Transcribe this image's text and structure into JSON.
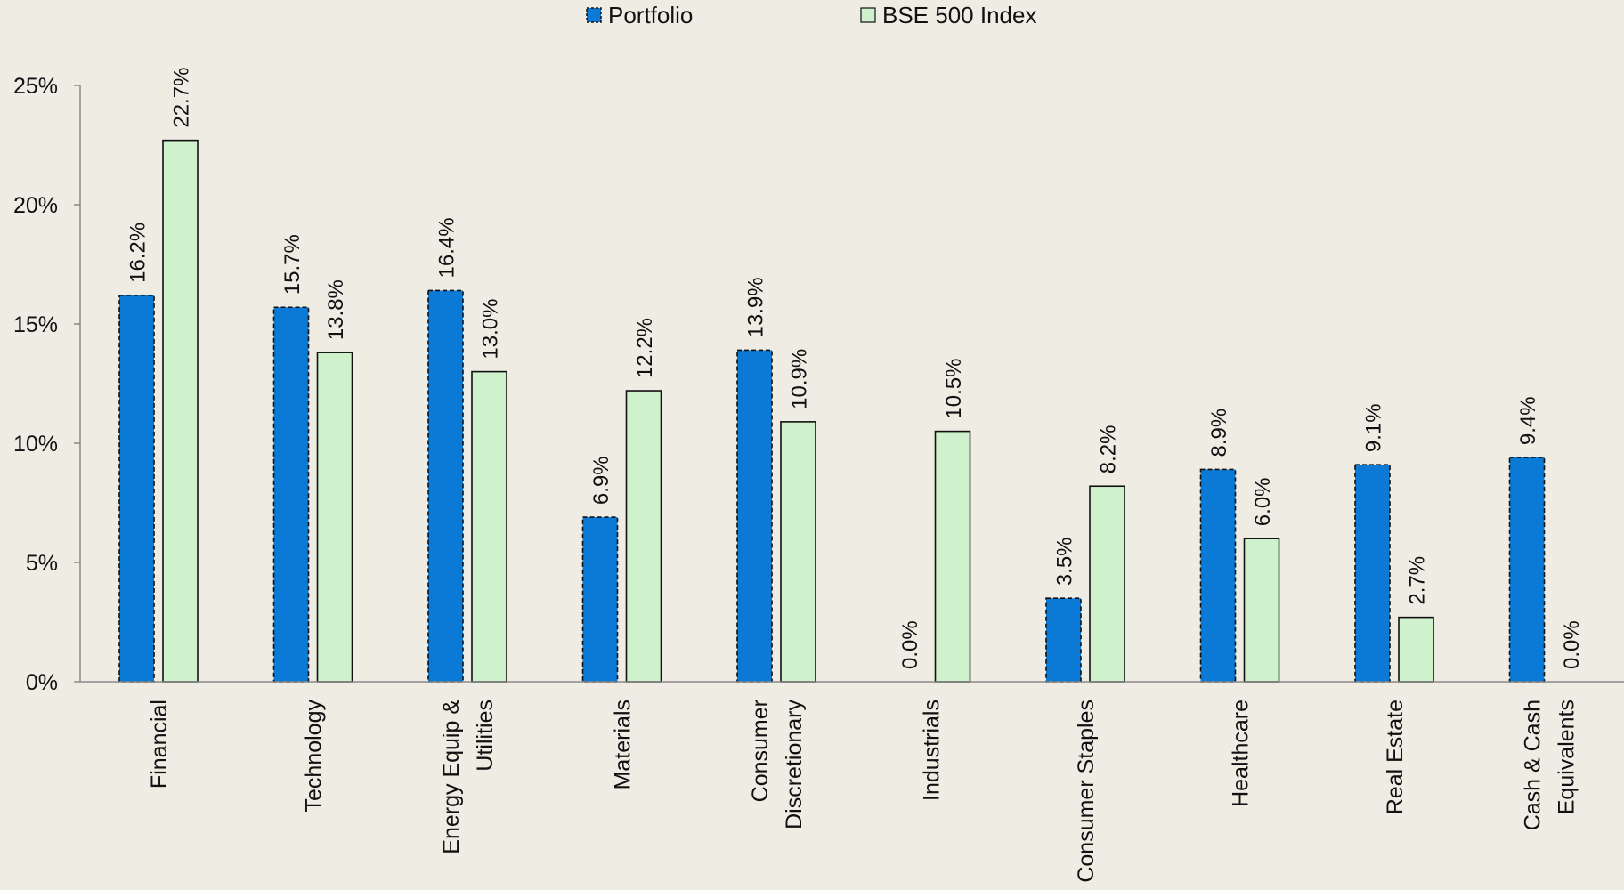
{
  "chart_data": {
    "type": "bar",
    "categories": [
      [
        "Financial"
      ],
      [
        "Technology"
      ],
      [
        "Energy Equip &",
        "Utilities"
      ],
      [
        "Materials"
      ],
      [
        "Consumer",
        "Discretionary"
      ],
      [
        "Industrials"
      ],
      [
        "Consumer Staples"
      ],
      [
        "Healthcare"
      ],
      [
        "Real Estate"
      ],
      [
        "Cash & Cash",
        "Equivalents"
      ]
    ],
    "series": [
      {
        "name": "Portfolio",
        "values": [
          16.2,
          15.7,
          16.4,
          6.9,
          13.9,
          0.0,
          3.5,
          8.9,
          9.1,
          9.4
        ],
        "labels": [
          "16.2%",
          "15.7%",
          "16.4%",
          "6.9%",
          "13.9%",
          "0.0%",
          "3.5%",
          "8.9%",
          "9.1%",
          "9.4%"
        ],
        "color": "#0a7ad6",
        "border": "dashed"
      },
      {
        "name": "BSE 500 Index",
        "values": [
          22.7,
          13.8,
          13.0,
          12.2,
          10.9,
          10.5,
          8.2,
          6.0,
          2.7,
          0.0
        ],
        "labels": [
          "22.7%",
          "13.8%",
          "13.0%",
          "12.2%",
          "10.9%",
          "10.5%",
          "8.2%",
          "6.0%",
          "2.7%",
          "0.0%"
        ],
        "color": "#cff2cc",
        "border": "solid"
      }
    ],
    "yticks": [
      0,
      5,
      10,
      15,
      20,
      25
    ],
    "ytick_labels": [
      "0%",
      "5%",
      "10%",
      "15%",
      "20%",
      "25%"
    ],
    "ylim": [
      0,
      25
    ],
    "grid": false,
    "legend_position": "top-center"
  }
}
